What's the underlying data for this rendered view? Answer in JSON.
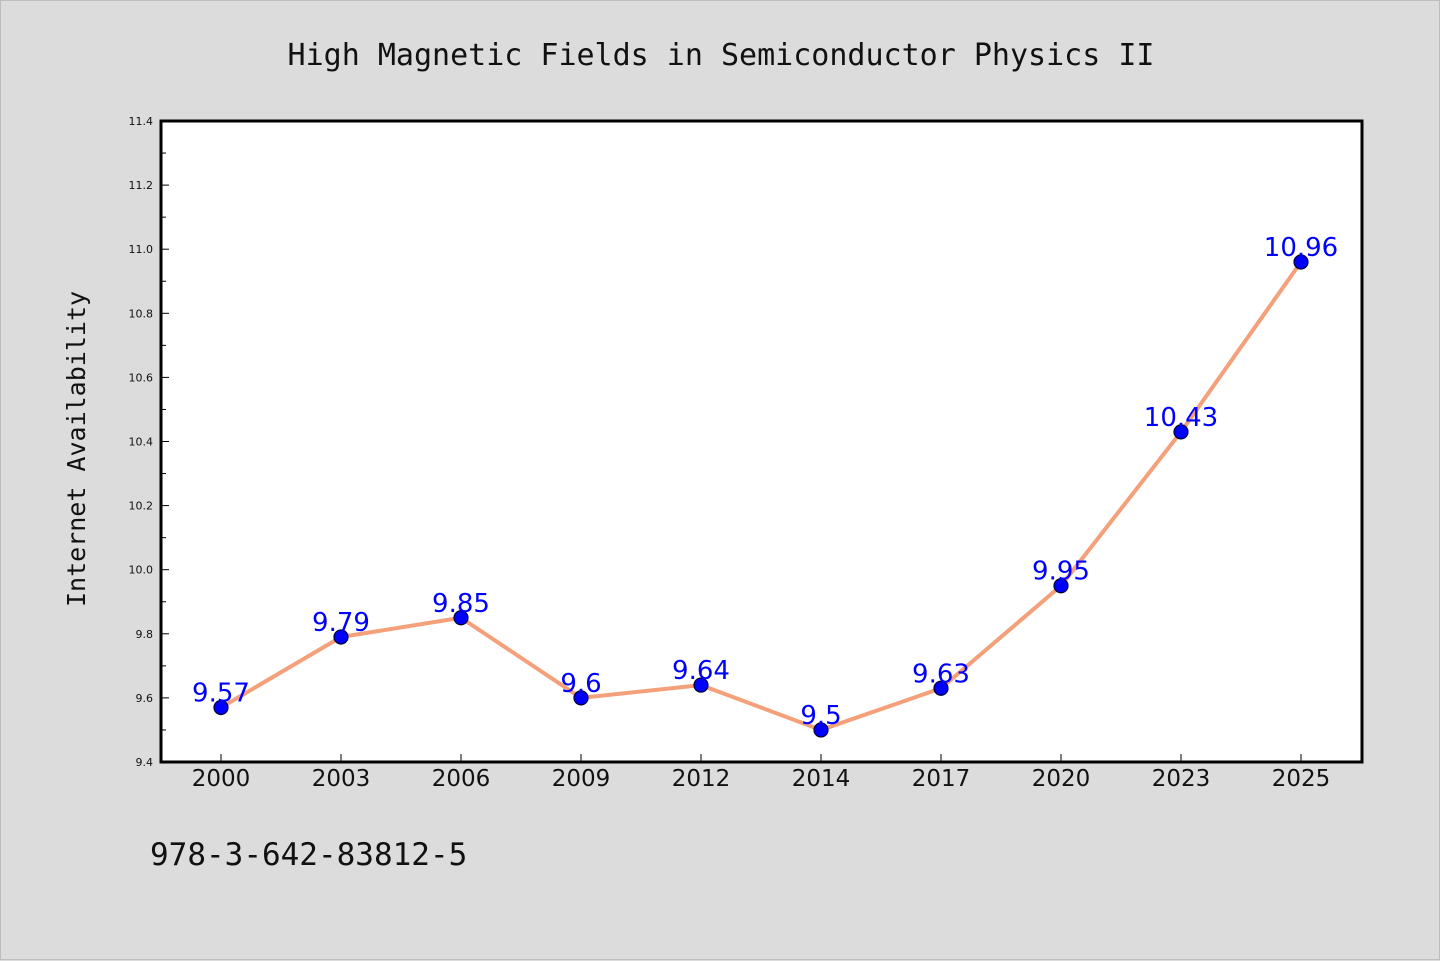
{
  "footer": {
    "isbn": "978-3-642-83812-5"
  },
  "chart_data": {
    "type": "line",
    "title": "High Magnetic Fields in Semiconductor Physics II",
    "xlabel": "",
    "ylabel": "Internet Availability",
    "categories": [
      "2000",
      "2003",
      "2006",
      "2009",
      "2012",
      "2014",
      "2017",
      "2020",
      "2023",
      "2025"
    ],
    "series": [
      {
        "values": [
          9.57,
          9.79,
          9.85,
          9.6,
          9.64,
          9.5,
          9.63,
          9.95,
          10.43,
          10.96
        ]
      }
    ],
    "data_labels": [
      "9.57",
      "9.79",
      "9.85",
      "9.6",
      "9.64",
      "9.5",
      "9.63",
      "9.95",
      "10.43",
      "10.96"
    ],
    "ylim": [
      9.4,
      11.4
    ],
    "yticks": [
      "9.4",
      "9.6",
      "9.8",
      "10.0",
      "10.2",
      "10.4",
      "10.6",
      "10.8",
      "11.0",
      "11.2",
      "11.4"
    ],
    "grid": false,
    "legend": "none",
    "colors": {
      "line": "#f4a07a",
      "marker_fill": "#0000ff",
      "marker_edge": "#000033",
      "data_label": "#0000ff",
      "plot_background": "#ffffff",
      "figure_background": "#dcdcdc"
    }
  }
}
